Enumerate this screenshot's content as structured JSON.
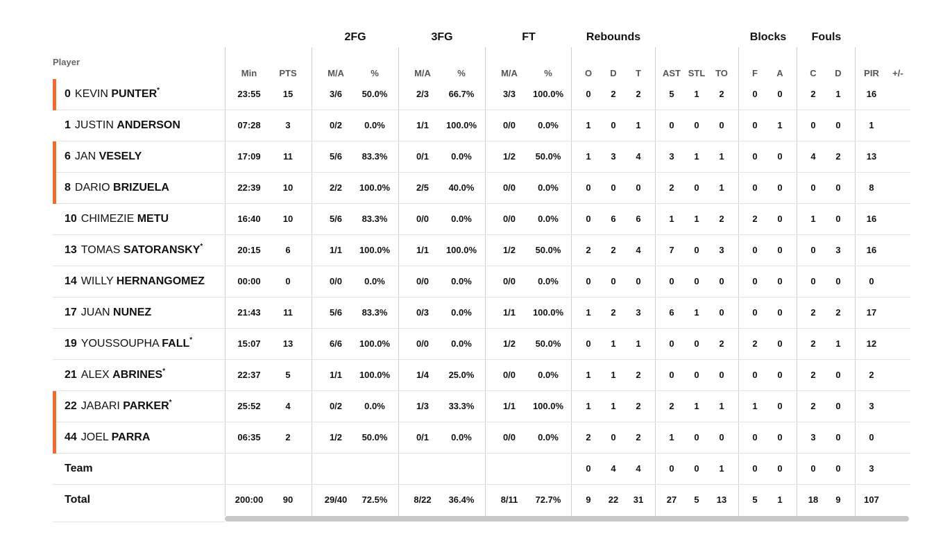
{
  "groups": {
    "fg2": "2FG",
    "fg3": "3FG",
    "ft": "FT",
    "rebounds": "Rebounds",
    "blocks": "Blocks",
    "fouls": "Fouls"
  },
  "columns": {
    "player": "Player",
    "min": "Min",
    "pts": "PTS",
    "fg2_ma": "M/A",
    "fg2_pct": "%",
    "fg3_ma": "M/A",
    "fg3_pct": "%",
    "ft_ma": "M/A",
    "ft_pct": "%",
    "reb_o": "O",
    "reb_d": "D",
    "reb_t": "T",
    "ast": "AST",
    "stl": "STL",
    "to": "TO",
    "blk_f": "F",
    "blk_a": "A",
    "foul_c": "C",
    "foul_d": "D",
    "pir": "PIR",
    "pm": "+/-"
  },
  "rows": [
    {
      "num": "0",
      "first": "KEVIN",
      "last": "PUNTER",
      "star": "*",
      "marker": true,
      "min": "23:55",
      "pts": "15",
      "fg2_ma": "3/6",
      "fg2_pct": "50.0%",
      "fg3_ma": "2/3",
      "fg3_pct": "66.7%",
      "ft_ma": "3/3",
      "ft_pct": "100.0%",
      "o": "0",
      "d": "2",
      "t": "2",
      "ast": "5",
      "stl": "1",
      "to": "2",
      "bf": "0",
      "ba": "0",
      "fc": "2",
      "fd": "1",
      "pir": "16"
    },
    {
      "num": "1",
      "first": "JUSTIN",
      "last": "ANDERSON",
      "star": "",
      "marker": false,
      "min": "07:28",
      "pts": "3",
      "fg2_ma": "0/2",
      "fg2_pct": "0.0%",
      "fg3_ma": "1/1",
      "fg3_pct": "100.0%",
      "ft_ma": "0/0",
      "ft_pct": "0.0%",
      "o": "1",
      "d": "0",
      "t": "1",
      "ast": "0",
      "stl": "0",
      "to": "0",
      "bf": "0",
      "ba": "1",
      "fc": "0",
      "fd": "0",
      "pir": "1"
    },
    {
      "num": "6",
      "first": "JAN",
      "last": "VESELY",
      "star": "",
      "marker": true,
      "min": "17:09",
      "pts": "11",
      "fg2_ma": "5/6",
      "fg2_pct": "83.3%",
      "fg3_ma": "0/1",
      "fg3_pct": "0.0%",
      "ft_ma": "1/2",
      "ft_pct": "50.0%",
      "o": "1",
      "d": "3",
      "t": "4",
      "ast": "3",
      "stl": "1",
      "to": "1",
      "bf": "0",
      "ba": "0",
      "fc": "4",
      "fd": "2",
      "pir": "13"
    },
    {
      "num": "8",
      "first": "DARIO",
      "last": "BRIZUELA",
      "star": "",
      "marker": true,
      "min": "22:39",
      "pts": "10",
      "fg2_ma": "2/2",
      "fg2_pct": "100.0%",
      "fg3_ma": "2/5",
      "fg3_pct": "40.0%",
      "ft_ma": "0/0",
      "ft_pct": "0.0%",
      "o": "0",
      "d": "0",
      "t": "0",
      "ast": "2",
      "stl": "0",
      "to": "1",
      "bf": "0",
      "ba": "0",
      "fc": "0",
      "fd": "0",
      "pir": "8"
    },
    {
      "num": "10",
      "first": "CHIMEZIE",
      "last": "METU",
      "star": "",
      "marker": false,
      "min": "16:40",
      "pts": "10",
      "fg2_ma": "5/6",
      "fg2_pct": "83.3%",
      "fg3_ma": "0/0",
      "fg3_pct": "0.0%",
      "ft_ma": "0/0",
      "ft_pct": "0.0%",
      "o": "0",
      "d": "6",
      "t": "6",
      "ast": "1",
      "stl": "1",
      "to": "2",
      "bf": "2",
      "ba": "0",
      "fc": "1",
      "fd": "0",
      "pir": "16"
    },
    {
      "num": "13",
      "first": "TOMAS",
      "last": "SATORANSKY",
      "star": "*",
      "marker": false,
      "min": "20:15",
      "pts": "6",
      "fg2_ma": "1/1",
      "fg2_pct": "100.0%",
      "fg3_ma": "1/1",
      "fg3_pct": "100.0%",
      "ft_ma": "1/2",
      "ft_pct": "50.0%",
      "o": "2",
      "d": "2",
      "t": "4",
      "ast": "7",
      "stl": "0",
      "to": "3",
      "bf": "0",
      "ba": "0",
      "fc": "0",
      "fd": "3",
      "pir": "16"
    },
    {
      "num": "14",
      "first": "WILLY",
      "last": "HERNANGOMEZ",
      "star": "",
      "marker": false,
      "min": "00:00",
      "pts": "0",
      "fg2_ma": "0/0",
      "fg2_pct": "0.0%",
      "fg3_ma": "0/0",
      "fg3_pct": "0.0%",
      "ft_ma": "0/0",
      "ft_pct": "0.0%",
      "o": "0",
      "d": "0",
      "t": "0",
      "ast": "0",
      "stl": "0",
      "to": "0",
      "bf": "0",
      "ba": "0",
      "fc": "0",
      "fd": "0",
      "pir": "0"
    },
    {
      "num": "17",
      "first": "JUAN",
      "last": "NUNEZ",
      "star": "",
      "marker": false,
      "min": "21:43",
      "pts": "11",
      "fg2_ma": "5/6",
      "fg2_pct": "83.3%",
      "fg3_ma": "0/3",
      "fg3_pct": "0.0%",
      "ft_ma": "1/1",
      "ft_pct": "100.0%",
      "o": "1",
      "d": "2",
      "t": "3",
      "ast": "6",
      "stl": "1",
      "to": "0",
      "bf": "0",
      "ba": "0",
      "fc": "2",
      "fd": "2",
      "pir": "17"
    },
    {
      "num": "19",
      "first": "YOUSSOUPHA",
      "last": "FALL",
      "star": "*",
      "marker": false,
      "min": "15:07",
      "pts": "13",
      "fg2_ma": "6/6",
      "fg2_pct": "100.0%",
      "fg3_ma": "0/0",
      "fg3_pct": "0.0%",
      "ft_ma": "1/2",
      "ft_pct": "50.0%",
      "o": "0",
      "d": "1",
      "t": "1",
      "ast": "0",
      "stl": "0",
      "to": "2",
      "bf": "2",
      "ba": "0",
      "fc": "2",
      "fd": "1",
      "pir": "12"
    },
    {
      "num": "21",
      "first": "ALEX",
      "last": "ABRINES",
      "star": "*",
      "marker": false,
      "min": "22:37",
      "pts": "5",
      "fg2_ma": "1/1",
      "fg2_pct": "100.0%",
      "fg3_ma": "1/4",
      "fg3_pct": "25.0%",
      "ft_ma": "0/0",
      "ft_pct": "0.0%",
      "o": "1",
      "d": "1",
      "t": "2",
      "ast": "0",
      "stl": "0",
      "to": "0",
      "bf": "0",
      "ba": "0",
      "fc": "2",
      "fd": "0",
      "pir": "2"
    },
    {
      "num": "22",
      "first": "JABARI",
      "last": "PARKER",
      "star": "*",
      "marker": true,
      "min": "25:52",
      "pts": "4",
      "fg2_ma": "0/2",
      "fg2_pct": "0.0%",
      "fg3_ma": "1/3",
      "fg3_pct": "33.3%",
      "ft_ma": "1/1",
      "ft_pct": "100.0%",
      "o": "1",
      "d": "1",
      "t": "2",
      "ast": "2",
      "stl": "1",
      "to": "1",
      "bf": "1",
      "ba": "0",
      "fc": "2",
      "fd": "0",
      "pir": "3"
    },
    {
      "num": "44",
      "first": "JOEL",
      "last": "PARRA",
      "star": "",
      "marker": true,
      "min": "06:35",
      "pts": "2",
      "fg2_ma": "1/2",
      "fg2_pct": "50.0%",
      "fg3_ma": "0/1",
      "fg3_pct": "0.0%",
      "ft_ma": "0/0",
      "ft_pct": "0.0%",
      "o": "2",
      "d": "0",
      "t": "2",
      "ast": "1",
      "stl": "0",
      "to": "0",
      "bf": "0",
      "ba": "0",
      "fc": "3",
      "fd": "0",
      "pir": "0"
    }
  ],
  "team": {
    "label": "Team",
    "o": "0",
    "d": "4",
    "t": "4",
    "ast": "0",
    "stl": "0",
    "to": "1",
    "bf": "0",
    "ba": "0",
    "fc": "0",
    "fd": "0",
    "pir": "3"
  },
  "total": {
    "label": "Total",
    "min": "200:00",
    "pts": "90",
    "fg2_ma": "29/40",
    "fg2_pct": "72.5%",
    "fg3_ma": "8/22",
    "fg3_pct": "36.4%",
    "ft_ma": "8/11",
    "ft_pct": "72.7%",
    "o": "9",
    "d": "22",
    "t": "31",
    "ast": "27",
    "stl": "5",
    "to": "13",
    "bf": "5",
    "ba": "1",
    "fc": "18",
    "fd": "9",
    "pir": "107"
  },
  "colors": {
    "starter_marker": "#f26a2e",
    "divider": "#cfcfcf",
    "row_line": "#e4e4e4",
    "scrollbar": "#c8c8c8"
  }
}
